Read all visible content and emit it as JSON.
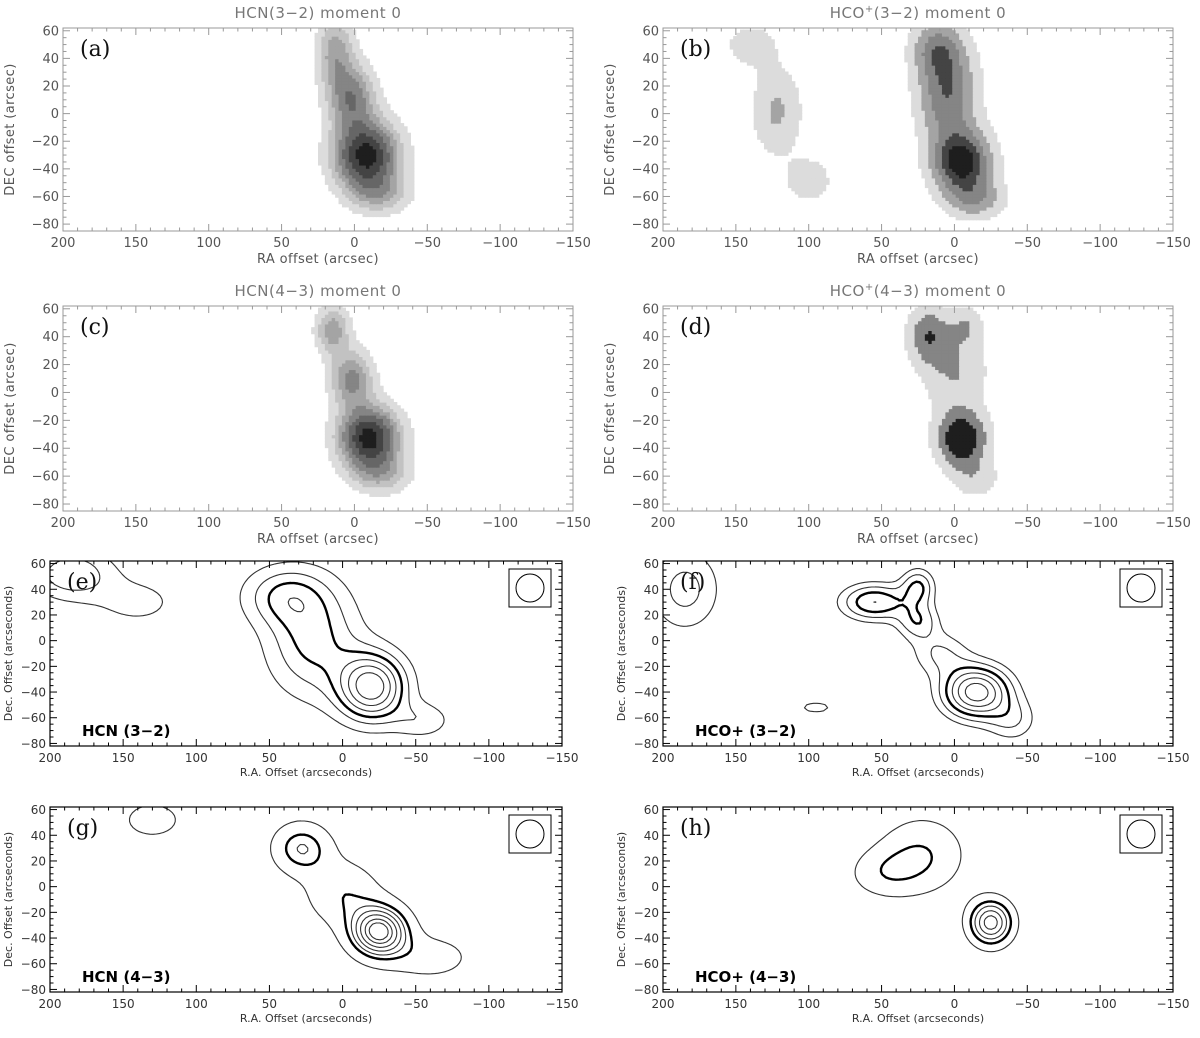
{
  "figure": {
    "colors": {
      "frame_top": "#999999",
      "frame_bottom": "#000000",
      "contour": "#333333",
      "fill_levels": [
        "#dcdcdc",
        "#c2c2c2",
        "#a4a4a4",
        "#858585",
        "#666666",
        "#444444",
        "#1e1e1e"
      ]
    }
  },
  "chart_data": [
    {
      "type": "contour",
      "panel": "(a)",
      "title": {
        "pre": "HCN",
        "sup": "",
        "post": "(3−2) moment 0"
      },
      "xlabel": "RA offset (arcsec)",
      "ylabel": "DEC offset (arcsec)",
      "xlim": [
        200,
        -150
      ],
      "ylim": [
        -85,
        62
      ],
      "xticks": [
        200,
        150,
        100,
        50,
        0,
        -50,
        -100,
        -150
      ],
      "yticks": [
        60,
        40,
        20,
        0,
        -20,
        -40,
        -60,
        -80
      ],
      "filled": true,
      "sources": [
        {
          "x": -8,
          "y": -30,
          "amp": 1.0,
          "sx": 15,
          "sy": 17
        },
        {
          "x": 2,
          "y": 12,
          "amp": 0.55,
          "sx": 11,
          "sy": 16
        },
        {
          "x": 13,
          "y": 45,
          "amp": 0.4,
          "sx": 9,
          "sy": 18
        },
        {
          "x": -18,
          "y": -58,
          "amp": 0.3,
          "sx": 14,
          "sy": 10
        }
      ],
      "levels": [
        0.1,
        0.22,
        0.34,
        0.46,
        0.6,
        0.76,
        0.92
      ]
    },
    {
      "type": "contour",
      "panel": "(b)",
      "title": {
        "pre": "HCO",
        "sup": "+",
        "post": "(3−2) moment 0"
      },
      "xlabel": "RA offset (arcsec)",
      "ylabel": "DEC offset (arcsec)",
      "xlim": [
        200,
        -150
      ],
      "ylim": [
        -85,
        62
      ],
      "xticks": [
        200,
        150,
        100,
        50,
        0,
        -50,
        -100,
        -150
      ],
      "yticks": [
        60,
        40,
        20,
        0,
        -20,
        -40,
        -60,
        -80
      ],
      "filled": true,
      "sources": [
        {
          "x": -5,
          "y": -35,
          "amp": 1.0,
          "sx": 14,
          "sy": 16
        },
        {
          "x": 5,
          "y": 15,
          "amp": 0.7,
          "sx": 14,
          "sy": 24
        },
        {
          "x": 12,
          "y": 48,
          "amp": 0.5,
          "sx": 12,
          "sy": 14
        },
        {
          "x": -15,
          "y": -62,
          "amp": 0.4,
          "sx": 14,
          "sy": 10
        },
        {
          "x": 122,
          "y": 2,
          "amp": 0.35,
          "sx": 12,
          "sy": 22
        },
        {
          "x": 100,
          "y": -48,
          "amp": 0.25,
          "sx": 12,
          "sy": 12
        },
        {
          "x": 140,
          "y": 50,
          "amp": 0.22,
          "sx": 14,
          "sy": 12
        }
      ],
      "levels": [
        0.14,
        0.32,
        0.52,
        0.72,
        0.9
      ]
    },
    {
      "type": "contour",
      "panel": "(c)",
      "title": {
        "pre": "HCN",
        "sup": "",
        "post": "(4−3) moment 0"
      },
      "xlabel": "RA offset (arcsec)",
      "ylabel": "DEC offset (arcsec)",
      "xlim": [
        200,
        -150
      ],
      "ylim": [
        -85,
        62
      ],
      "xticks": [
        200,
        150,
        100,
        50,
        0,
        -50,
        -100,
        -150
      ],
      "yticks": [
        60,
        40,
        20,
        0,
        -20,
        -40,
        -60,
        -80
      ],
      "filled": true,
      "sources": [
        {
          "x": -10,
          "y": -32,
          "amp": 1.0,
          "sx": 14,
          "sy": 15
        },
        {
          "x": 2,
          "y": 10,
          "amp": 0.5,
          "sx": 10,
          "sy": 14
        },
        {
          "x": 15,
          "y": 45,
          "amp": 0.42,
          "sx": 8,
          "sy": 12
        },
        {
          "x": -18,
          "y": -58,
          "amp": 0.3,
          "sx": 14,
          "sy": 10
        }
      ],
      "levels": [
        0.1,
        0.22,
        0.34,
        0.46,
        0.6,
        0.76,
        0.92
      ]
    },
    {
      "type": "contour",
      "panel": "(d)",
      "title": {
        "pre": "HCO",
        "sup": "+",
        "post": "(4−3) moment 0"
      },
      "xlabel": "RA offset (arcsec)",
      "ylabel": "DEC offset (arcsec)",
      "xlim": [
        200,
        -150
      ],
      "ylim": [
        -85,
        62
      ],
      "xticks": [
        200,
        150,
        100,
        50,
        0,
        -50,
        -100,
        -150
      ],
      "yticks": [
        60,
        40,
        20,
        0,
        -20,
        -40,
        -60,
        -80
      ],
      "filled": true,
      "sources": [
        {
          "x": -5,
          "y": -33,
          "amp": 1.0,
          "sx": 12,
          "sy": 14
        },
        {
          "x": 18,
          "y": 42,
          "amp": 0.62,
          "sx": 10,
          "sy": 14
        },
        {
          "x": 0,
          "y": 15,
          "amp": 0.42,
          "sx": 16,
          "sy": 20
        },
        {
          "x": -15,
          "y": -62,
          "amp": 0.3,
          "sx": 12,
          "sy": 10
        },
        {
          "x": -8,
          "y": 48,
          "amp": 0.35,
          "sx": 8,
          "sy": 10
        }
      ],
      "levels": [
        0.18,
        0.42,
        0.7
      ]
    },
    {
      "type": "contour",
      "panel": "(e)",
      "mol_label": "HCN (3−2)",
      "xlabel": "R.A. Offset (arcseconds)",
      "ylabel": "Dec. Offset (arcseconds)",
      "xlim": [
        200,
        -150
      ],
      "ylim": [
        -82,
        62
      ],
      "xticks": [
        200,
        150,
        100,
        50,
        0,
        -50,
        -100,
        -150
      ],
      "yticks": [
        60,
        40,
        20,
        0,
        -20,
        -40,
        -60,
        -80
      ],
      "filled": false,
      "beam": true,
      "sources": [
        {
          "x": -20,
          "y": -36,
          "amp": 1.0,
          "sx": 16,
          "sy": 18
        },
        {
          "x": 20,
          "y": 0,
          "amp": 0.5,
          "sx": 22,
          "sy": 30
        },
        {
          "x": 40,
          "y": 35,
          "amp": 0.4,
          "sx": 20,
          "sy": 16
        },
        {
          "x": -55,
          "y": -62,
          "amp": 0.25,
          "sx": 14,
          "sy": 10
        },
        {
          "x": 185,
          "y": 52,
          "amp": 0.42,
          "sx": 20,
          "sy": 14
        },
        {
          "x": 140,
          "y": 30,
          "amp": 0.2,
          "sx": 22,
          "sy": 14
        }
      ],
      "levels": [
        0.15,
        0.3,
        0.45,
        0.6,
        0.75,
        0.9
      ],
      "bold_levels": [
        0.45
      ]
    },
    {
      "type": "contour",
      "panel": "(f)",
      "mol_label": "HCO+ (3−2)",
      "xlabel": "R.A. Offset (arcseconds)",
      "ylabel": "Dec. Offset (arcseconds)",
      "xlim": [
        200,
        -150
      ],
      "ylim": [
        -82,
        62
      ],
      "xticks": [
        200,
        150,
        100,
        50,
        0,
        -50,
        -100,
        -150
      ],
      "yticks": [
        60,
        40,
        20,
        0,
        -20,
        -40,
        -60,
        -80
      ],
      "filled": false,
      "beam": true,
      "sources": [
        {
          "x": -15,
          "y": -40,
          "amp": 1.0,
          "sx": 16,
          "sy": 14
        },
        {
          "x": 55,
          "y": 30,
          "amp": 0.6,
          "sx": 16,
          "sy": 10
        },
        {
          "x": 25,
          "y": 42,
          "amp": 0.45,
          "sx": 8,
          "sy": 10
        },
        {
          "x": 25,
          "y": 15,
          "amp": 0.4,
          "sx": 10,
          "sy": 10
        },
        {
          "x": 10,
          "y": -10,
          "amp": 0.3,
          "sx": 14,
          "sy": 12
        },
        {
          "x": -40,
          "y": -62,
          "amp": 0.28,
          "sx": 12,
          "sy": 12
        },
        {
          "x": 95,
          "y": -52,
          "amp": 0.2,
          "sx": 14,
          "sy": 6
        },
        {
          "x": 185,
          "y": 40,
          "amp": 0.35,
          "sx": 18,
          "sy": 24
        }
      ],
      "levels": [
        0.17,
        0.3,
        0.45,
        0.6,
        0.75,
        0.9
      ],
      "bold_levels": [
        0.45
      ]
    },
    {
      "type": "contour",
      "panel": "(g)",
      "mol_label": "HCN (4−3)",
      "xlabel": "R.A. Offset (arcseconds)",
      "ylabel": "Dec. Offset (arcseconds)",
      "xlim": [
        200,
        -150
      ],
      "ylim": [
        -82,
        62
      ],
      "xticks": [
        200,
        150,
        100,
        50,
        0,
        -50,
        -100,
        -150
      ],
      "yticks": [
        60,
        40,
        20,
        0,
        -20,
        -40,
        -60,
        -80
      ],
      "filled": false,
      "beam": true,
      "sources": [
        {
          "x": -25,
          "y": -35,
          "amp": 1.0,
          "sx": 14,
          "sy": 14
        },
        {
          "x": 28,
          "y": 30,
          "amp": 0.5,
          "sx": 14,
          "sy": 14
        },
        {
          "x": 0,
          "y": -5,
          "amp": 0.35,
          "sx": 18,
          "sy": 18
        },
        {
          "x": -60,
          "y": -55,
          "amp": 0.28,
          "sx": 20,
          "sy": 12
        },
        {
          "x": 130,
          "y": 52,
          "amp": 0.3,
          "sx": 14,
          "sy": 10
        }
      ],
      "levels": [
        0.16,
        0.38,
        0.5,
        0.62,
        0.74,
        0.86,
        0.95
      ],
      "bold_levels": [
        0.38
      ]
    },
    {
      "type": "contour",
      "panel": "(h)",
      "mol_label": "HCO+ (4−3)",
      "xlabel": "R.A. Offset (arcseconds)",
      "ylabel": "Dec. Offset (arcseconds)",
      "xlim": [
        200,
        -150
      ],
      "ylim": [
        -82,
        62
      ],
      "xticks": [
        200,
        150,
        100,
        50,
        0,
        -50,
        -100,
        -150
      ],
      "yticks": [
        60,
        40,
        20,
        0,
        -20,
        -40,
        -60,
        -80
      ],
      "filled": false,
      "beam": true,
      "sources": [
        {
          "x": -25,
          "y": -28,
          "amp": 1.0,
          "sx": 11,
          "sy": 13
        },
        {
          "x": 22,
          "y": 25,
          "amp": 0.45,
          "sx": 22,
          "sy": 22
        },
        {
          "x": 50,
          "y": 10,
          "amp": 0.3,
          "sx": 18,
          "sy": 14
        }
      ],
      "levels": [
        0.22,
        0.46,
        0.62,
        0.78,
        0.92
      ],
      "bold_levels": [
        0.46
      ]
    }
  ]
}
